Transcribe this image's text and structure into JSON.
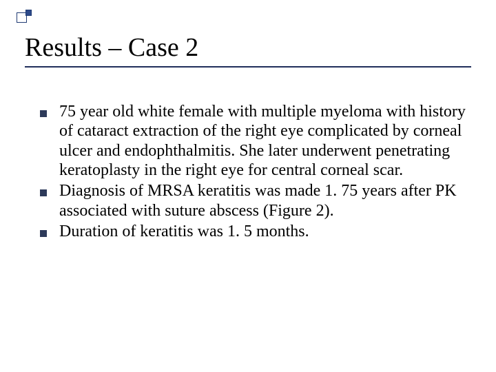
{
  "slide": {
    "title": "Results – Case 2",
    "title_fontsize": 38,
    "title_color": "#000000",
    "underline_color": "#1f2d5a",
    "underline_thickness": 2.5,
    "background_color": "#ffffff",
    "decoration": {
      "big_square": {
        "fill": "#ffffff",
        "border": "#1f3a73",
        "size": 15
      },
      "small_square": {
        "fill": "#2d4a8a",
        "border": "#1f3a73",
        "size": 9
      }
    },
    "bullet_marker": {
      "shape": "square",
      "size": 10,
      "color": "#2d3a5a"
    },
    "body_fontsize": 24,
    "body_lineheight": 1.18,
    "body_color": "#000000",
    "bullets": [
      "75 year old white female with multiple myeloma with history of cataract extraction of the right eye complicated by corneal ulcer and endophthalmitis.  She later underwent penetrating keratoplasty in the right eye for central corneal scar.",
      "Diagnosis of MRSA keratitis was made 1. 75 years after PK associated with suture abscess (Figure 2).",
      "Duration of keratitis was 1. 5 months."
    ]
  }
}
